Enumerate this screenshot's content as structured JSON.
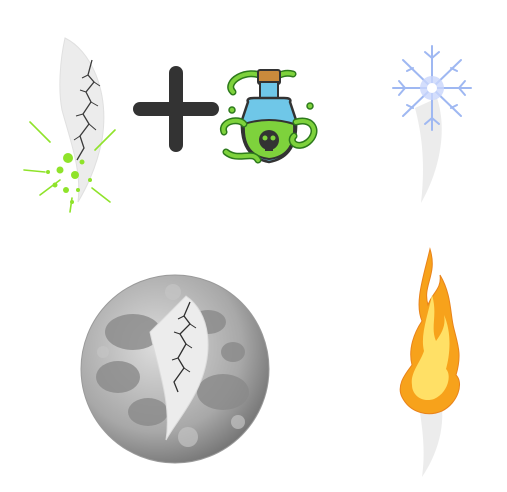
{
  "scene": {
    "tiles": [
      {
        "id": "poison-fang",
        "icon": "cracked-fang-with-green-splatter-icon"
      },
      {
        "id": "plus",
        "icon": "plus-icon"
      },
      {
        "id": "potion",
        "icon": "poison-potion-bottle-icon"
      },
      {
        "id": "ice-fang",
        "icon": "fang-with-ice-crystal-icon"
      },
      {
        "id": "moon-fang",
        "icon": "cracked-fang-on-moon-icon"
      },
      {
        "id": "fire-fang",
        "icon": "fang-with-flame-icon"
      }
    ],
    "colors": {
      "fang": "#ececec",
      "crack": "#3a3a3a",
      "poison": "#8fe32a",
      "plus": "#333333",
      "potion_glass": "#6fc7e8",
      "potion_liquid": "#7ed23c",
      "ice": "#9fb8f2",
      "fire_outer": "#f7a21b",
      "fire_inner": "#ffe066",
      "moon_light": "#cfcfcf",
      "moon_dark": "#8a8a8a"
    }
  }
}
